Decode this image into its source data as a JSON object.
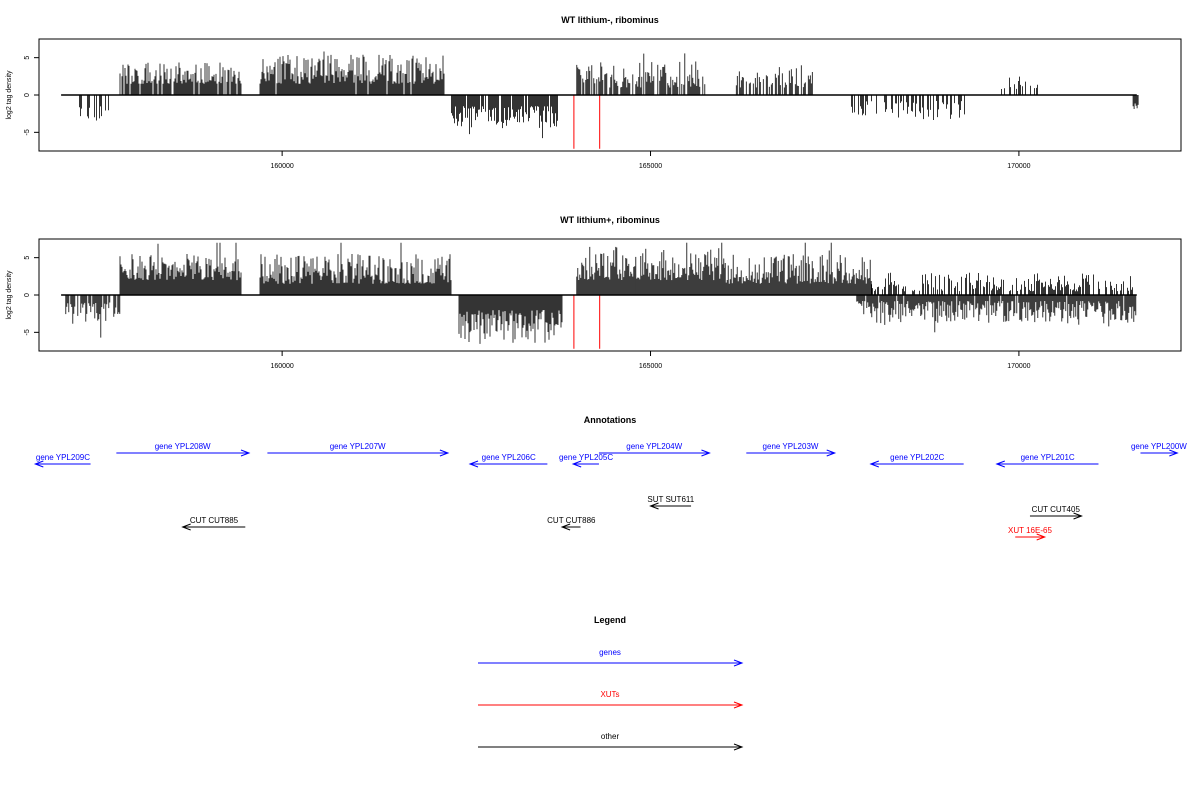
{
  "chart_data": [
    {
      "type": "bar",
      "title": "WT lithium-, ribominus",
      "ylabel": "log2 tag density",
      "xlim": [
        156700,
        172200
      ],
      "ylim": [
        -7.5,
        7.5
      ],
      "x_ticks": [
        160000,
        165000,
        170000
      ],
      "x_tick_labels": [
        "160000",
        "165000",
        "170000"
      ],
      "y_ticks": [
        5,
        0,
        -5
      ],
      "y_tick_labels": [
        "5",
        "0",
        "-5"
      ],
      "grid": false,
      "baseline": {
        "from": 157000,
        "to": 171600
      },
      "markers": {
        "color": "#ff0000",
        "positions": [
          163960,
          164310
        ],
        "value": -7.2
      },
      "signal": {
        "color": "#000000",
        "regions": [
          {
            "start": 157250,
            "end": 157650,
            "sign": -1,
            "min": 1.5,
            "max": 3.5,
            "density": 0.4,
            "seed": 11
          },
          {
            "start": 157800,
            "end": 159450,
            "sign": 1,
            "min": 1.5,
            "max": 4.5,
            "density": 0.85,
            "seed": 12
          },
          {
            "start": 159700,
            "end": 162200,
            "sign": 1,
            "min": 1.5,
            "max": 5.5,
            "density": 0.95,
            "seed": 13
          },
          {
            "start": 162300,
            "end": 163750,
            "sign": -1,
            "min": 1.5,
            "max": 4.5,
            "density": 0.9,
            "seed": 14
          },
          {
            "start": 164000,
            "end": 165750,
            "sign": 1,
            "min": 1.0,
            "max": 4.5,
            "density": 0.7,
            "seed": 15
          },
          {
            "start": 166150,
            "end": 167200,
            "sign": 1,
            "min": 1.0,
            "max": 4.0,
            "density": 0.55,
            "seed": 16
          },
          {
            "start": 167700,
            "end": 169300,
            "sign": -1,
            "min": 0.8,
            "max": 3.5,
            "density": 0.45,
            "seed": 17
          },
          {
            "start": 169750,
            "end": 170300,
            "sign": 1,
            "min": 0.8,
            "max": 2.5,
            "density": 0.3,
            "seed": 18
          },
          {
            "start": 171550,
            "end": 171620,
            "sign": -1,
            "min": 1.0,
            "max": 2.0,
            "density": 1.0,
            "seed": 19
          }
        ]
      }
    },
    {
      "type": "bar",
      "title": "WT lithium+, ribominus",
      "ylabel": "log2 tag density",
      "xlim": [
        156700,
        172200
      ],
      "ylim": [
        -7.5,
        7.5
      ],
      "x_ticks": [
        160000,
        165000,
        170000
      ],
      "x_tick_labels": [
        "160000",
        "165000",
        "170000"
      ],
      "y_ticks": [
        5,
        0,
        -5
      ],
      "y_tick_labels": [
        "5",
        "0",
        "-5"
      ],
      "grid": false,
      "baseline": {
        "from": 157000,
        "to": 171600
      },
      "markers": {
        "color": "#ff0000",
        "positions": [
          163960,
          164310
        ],
        "value": -7.2
      },
      "signal": {
        "color": "#000000",
        "regions": [
          {
            "start": 157050,
            "end": 157800,
            "sign": -1,
            "min": 1.0,
            "max": 4.0,
            "density": 0.8,
            "seed": 21
          },
          {
            "start": 157800,
            "end": 159450,
            "sign": 1,
            "min": 2.0,
            "max": 5.5,
            "density": 1.0,
            "seed": 22
          },
          {
            "start": 159700,
            "end": 162300,
            "sign": 1,
            "min": 1.5,
            "max": 5.5,
            "density": 1.0,
            "seed": 23
          },
          {
            "start": 162400,
            "end": 163800,
            "sign": -1,
            "min": 2.0,
            "max": 6.5,
            "density": 1.0,
            "seed": 24
          },
          {
            "start": 164000,
            "end": 166000,
            "sign": 1,
            "min": 2.0,
            "max": 6.5,
            "density": 1.0,
            "seed": 25
          },
          {
            "start": 166000,
            "end": 168000,
            "sign": 1,
            "min": 1.5,
            "max": 5.5,
            "density": 1.0,
            "seed": 26
          },
          {
            "start": 167800,
            "end": 171600,
            "sign": -1,
            "min": 0.8,
            "max": 3.8,
            "density": 0.95,
            "seed": 27
          },
          {
            "start": 168000,
            "end": 171550,
            "sign": 1,
            "min": 0.5,
            "max": 3.0,
            "density": 0.6,
            "seed": 28
          }
        ]
      }
    }
  ],
  "annotations": {
    "title": "Annotations",
    "xlim": [
      156700,
      172200
    ],
    "features": [
      {
        "label": "gene YPL209C",
        "start": 157400,
        "end": 156650,
        "row": 1,
        "color": "#0000ff"
      },
      {
        "label": "gene YPL208W",
        "start": 157750,
        "end": 159550,
        "row": 0,
        "color": "#0000ff"
      },
      {
        "label": "gene YPL207W",
        "start": 159800,
        "end": 162250,
        "row": 0,
        "color": "#0000ff"
      },
      {
        "label": "gene YPL206C",
        "start": 163600,
        "end": 162550,
        "row": 1,
        "color": "#0000ff"
      },
      {
        "label": "gene YPL205C",
        "start": 164300,
        "end": 163950,
        "row": 1,
        "color": "#0000ff"
      },
      {
        "label": "gene YPL204W",
        "start": 164300,
        "end": 165800,
        "row": 0,
        "color": "#0000ff"
      },
      {
        "label": "gene YPL203W",
        "start": 166300,
        "end": 167500,
        "row": 0,
        "color": "#0000ff"
      },
      {
        "label": "gene YPL202C",
        "start": 169250,
        "end": 167990,
        "row": 1,
        "color": "#0000ff"
      },
      {
        "label": "gene YPL201C",
        "start": 171080,
        "end": 169700,
        "row": 1,
        "color": "#0000ff"
      },
      {
        "label": "gene YPL200W",
        "start": 171650,
        "end": 172150,
        "row": 0,
        "color": "#0000ff"
      },
      {
        "label": "SUT SUT611",
        "start": 165550,
        "end": 165000,
        "row": 2,
        "color": "#000000"
      },
      {
        "label": "CUT CUT885",
        "start": 159500,
        "end": 158650,
        "row": 3,
        "color": "#000000"
      },
      {
        "label": "CUT CUT886",
        "start": 164050,
        "end": 163800,
        "row": 3,
        "color": "#000000"
      },
      {
        "label": "CUT CUT405",
        "start": 170150,
        "end": 170850,
        "row": 4,
        "color": "#000000"
      },
      {
        "label": "XUT 16E-65",
        "start": 169950,
        "end": 170350,
        "row": 5,
        "color": "#ff0000"
      }
    ]
  },
  "legend": {
    "title": "Legend",
    "items": [
      {
        "label": "genes",
        "color": "#0000ff"
      },
      {
        "label": "XUTs",
        "color": "#ff0000"
      },
      {
        "label": "other",
        "color": "#000000"
      }
    ]
  }
}
